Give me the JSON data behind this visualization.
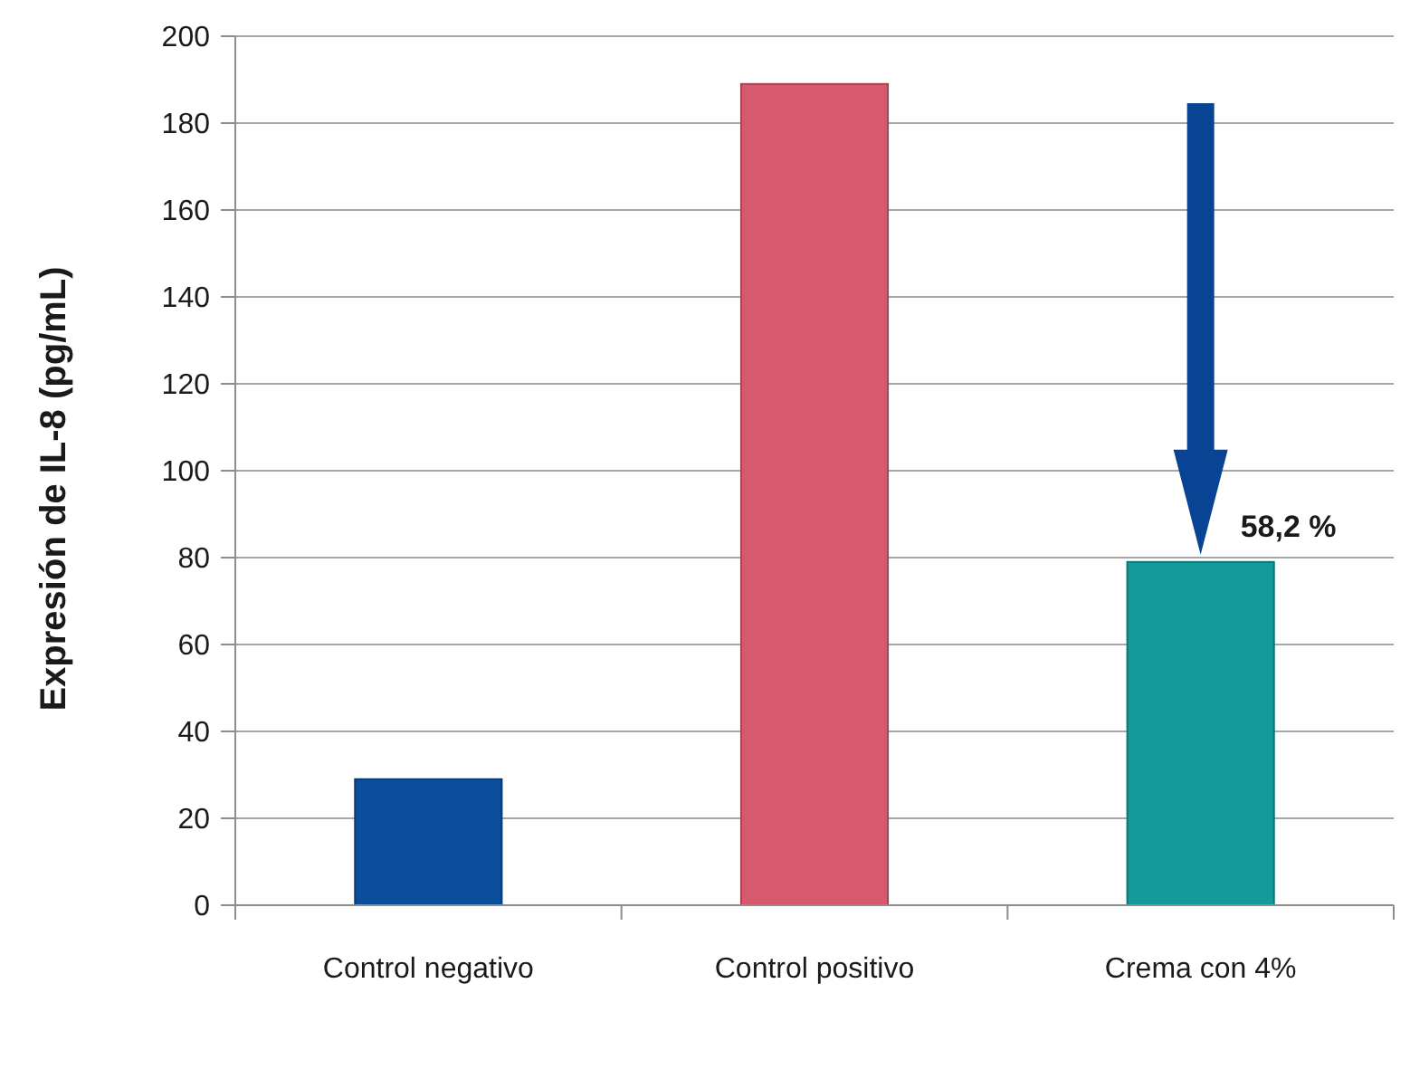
{
  "chart_data": {
    "type": "bar",
    "ylabel": "Expresión de IL-8 (pg/mL)",
    "categories": [
      "Control negativo",
      "Control positivo",
      "Crema con 4%"
    ],
    "values": [
      29,
      189,
      79
    ],
    "colors": [
      "#0b4f9c",
      "#d65a6c",
      "#139a9a"
    ],
    "ylim": [
      0,
      200
    ],
    "yticks": [
      0,
      20,
      40,
      60,
      80,
      100,
      120,
      140,
      160,
      180,
      200
    ],
    "grid": "y",
    "annotations": [
      {
        "text": "58,2 %",
        "x": "Crema con 4%",
        "y": 79
      }
    ]
  }
}
